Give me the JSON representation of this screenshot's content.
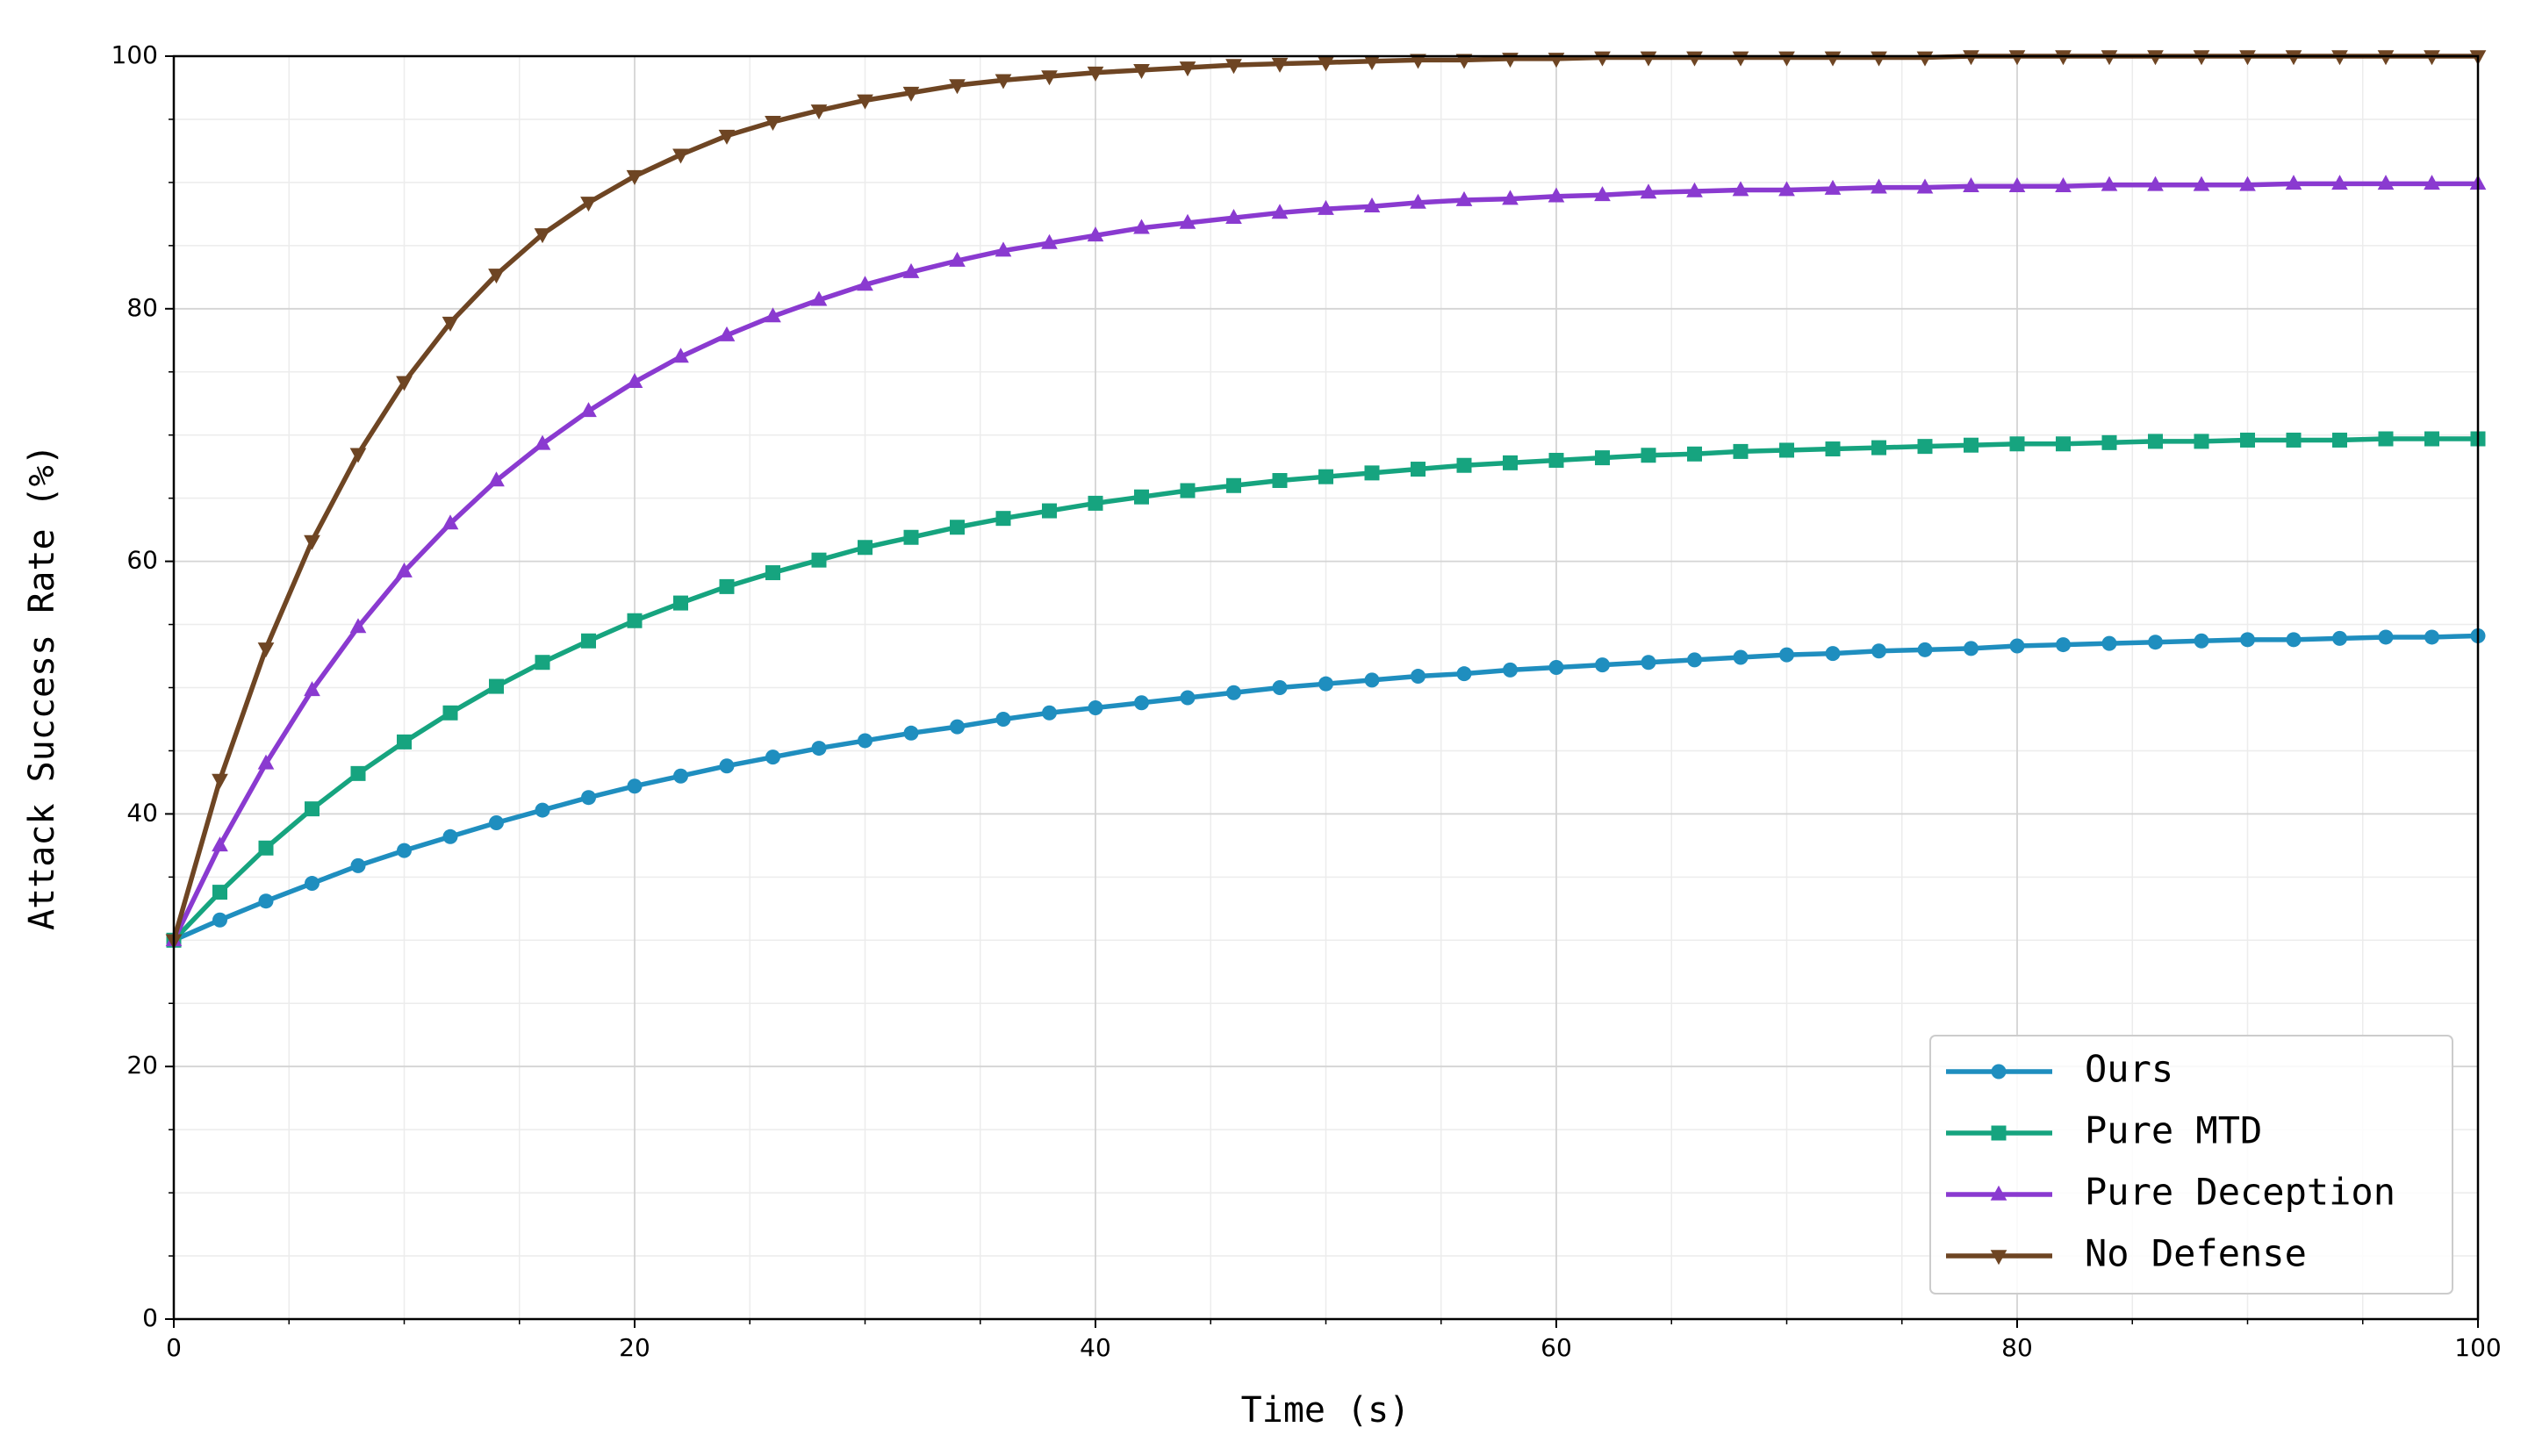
{
  "chart_data": {
    "type": "line",
    "xlabel": "Time (s)",
    "ylabel": "Attack Success Rate (%)",
    "x": [
      0,
      2,
      4,
      6,
      8,
      10,
      12,
      14,
      16,
      18,
      20,
      22,
      24,
      26,
      28,
      30,
      32,
      34,
      36,
      38,
      40,
      42,
      44,
      46,
      48,
      50,
      52,
      54,
      56,
      58,
      60,
      62,
      64,
      66,
      68,
      70,
      72,
      74,
      76,
      78,
      80,
      82,
      84,
      86,
      88,
      90,
      92,
      94,
      96,
      98,
      100
    ],
    "series": [
      {
        "name": "Ours",
        "color": "#1f8ebf",
        "marker": "circle",
        "values": [
          30,
          31.6,
          33.1,
          34.5,
          35.9,
          37.1,
          38.2,
          39.3,
          40.3,
          41.3,
          42.2,
          43.0,
          43.8,
          44.5,
          45.2,
          45.8,
          46.4,
          46.9,
          47.5,
          48.0,
          48.4,
          48.8,
          49.2,
          49.6,
          50.0,
          50.3,
          50.6,
          50.9,
          51.1,
          51.4,
          51.6,
          51.8,
          52.0,
          52.2,
          52.4,
          52.6,
          52.7,
          52.9,
          53.0,
          53.1,
          53.3,
          53.4,
          53.5,
          53.6,
          53.7,
          53.8,
          53.8,
          53.9,
          54.0,
          54.0,
          54.1
        ]
      },
      {
        "name": "Pure MTD",
        "color": "#16a47f",
        "marker": "square",
        "values": [
          30,
          33.8,
          37.3,
          40.4,
          43.2,
          45.7,
          48.0,
          50.1,
          52.0,
          53.7,
          55.3,
          56.7,
          58.0,
          59.1,
          60.1,
          61.1,
          61.9,
          62.7,
          63.4,
          64.0,
          64.6,
          65.1,
          65.6,
          66.0,
          66.4,
          66.7,
          67.0,
          67.3,
          67.6,
          67.8,
          68.0,
          68.2,
          68.4,
          68.5,
          68.7,
          68.8,
          68.9,
          69.0,
          69.1,
          69.2,
          69.3,
          69.3,
          69.4,
          69.5,
          69.5,
          69.6,
          69.6,
          69.6,
          69.7,
          69.7,
          69.7
        ]
      },
      {
        "name": "Pure Deception",
        "color": "#8a3ad0",
        "marker": "triangle-up",
        "values": [
          30,
          37.5,
          44.0,
          49.8,
          54.8,
          59.2,
          63.0,
          66.4,
          69.3,
          71.9,
          74.2,
          76.2,
          77.9,
          79.4,
          80.7,
          81.9,
          82.9,
          83.8,
          84.6,
          85.2,
          85.8,
          86.4,
          86.8,
          87.2,
          87.6,
          87.9,
          88.1,
          88.4,
          88.6,
          88.7,
          88.9,
          89.0,
          89.2,
          89.3,
          89.4,
          89.4,
          89.5,
          89.6,
          89.6,
          89.7,
          89.7,
          89.7,
          89.8,
          89.8,
          89.8,
          89.8,
          89.9,
          89.9,
          89.9,
          89.9,
          89.9
        ]
      },
      {
        "name": "No Defense",
        "color": "#6e4523",
        "marker": "triangle-down",
        "values": [
          30,
          42.7,
          53.1,
          61.6,
          68.5,
          74.2,
          78.9,
          82.7,
          85.9,
          88.4,
          90.5,
          92.2,
          93.7,
          94.8,
          95.7,
          96.5,
          97.1,
          97.7,
          98.1,
          98.4,
          98.7,
          98.9,
          99.1,
          99.3,
          99.4,
          99.5,
          99.6,
          99.7,
          99.7,
          99.8,
          99.8,
          99.9,
          99.9,
          99.9,
          99.9,
          99.9,
          99.9,
          99.9,
          99.9,
          100,
          100,
          100,
          100,
          100,
          100,
          100,
          100,
          100,
          100,
          100,
          100
        ]
      }
    ],
    "xlim": [
      0,
      100
    ],
    "ylim": [
      0,
      100
    ],
    "xticks": [
      0,
      20,
      40,
      60,
      80,
      100
    ],
    "yticks": [
      0,
      20,
      40,
      60,
      80,
      100
    ],
    "minor_xticks": [
      5,
      10,
      15,
      25,
      30,
      35,
      45,
      50,
      55,
      65,
      70,
      75,
      85,
      90,
      95
    ],
    "minor_yticks": [
      5,
      10,
      15,
      25,
      30,
      35,
      45,
      50,
      55,
      65,
      70,
      75,
      85,
      90,
      95
    ],
    "grid": true,
    "legend": "lower right"
  }
}
